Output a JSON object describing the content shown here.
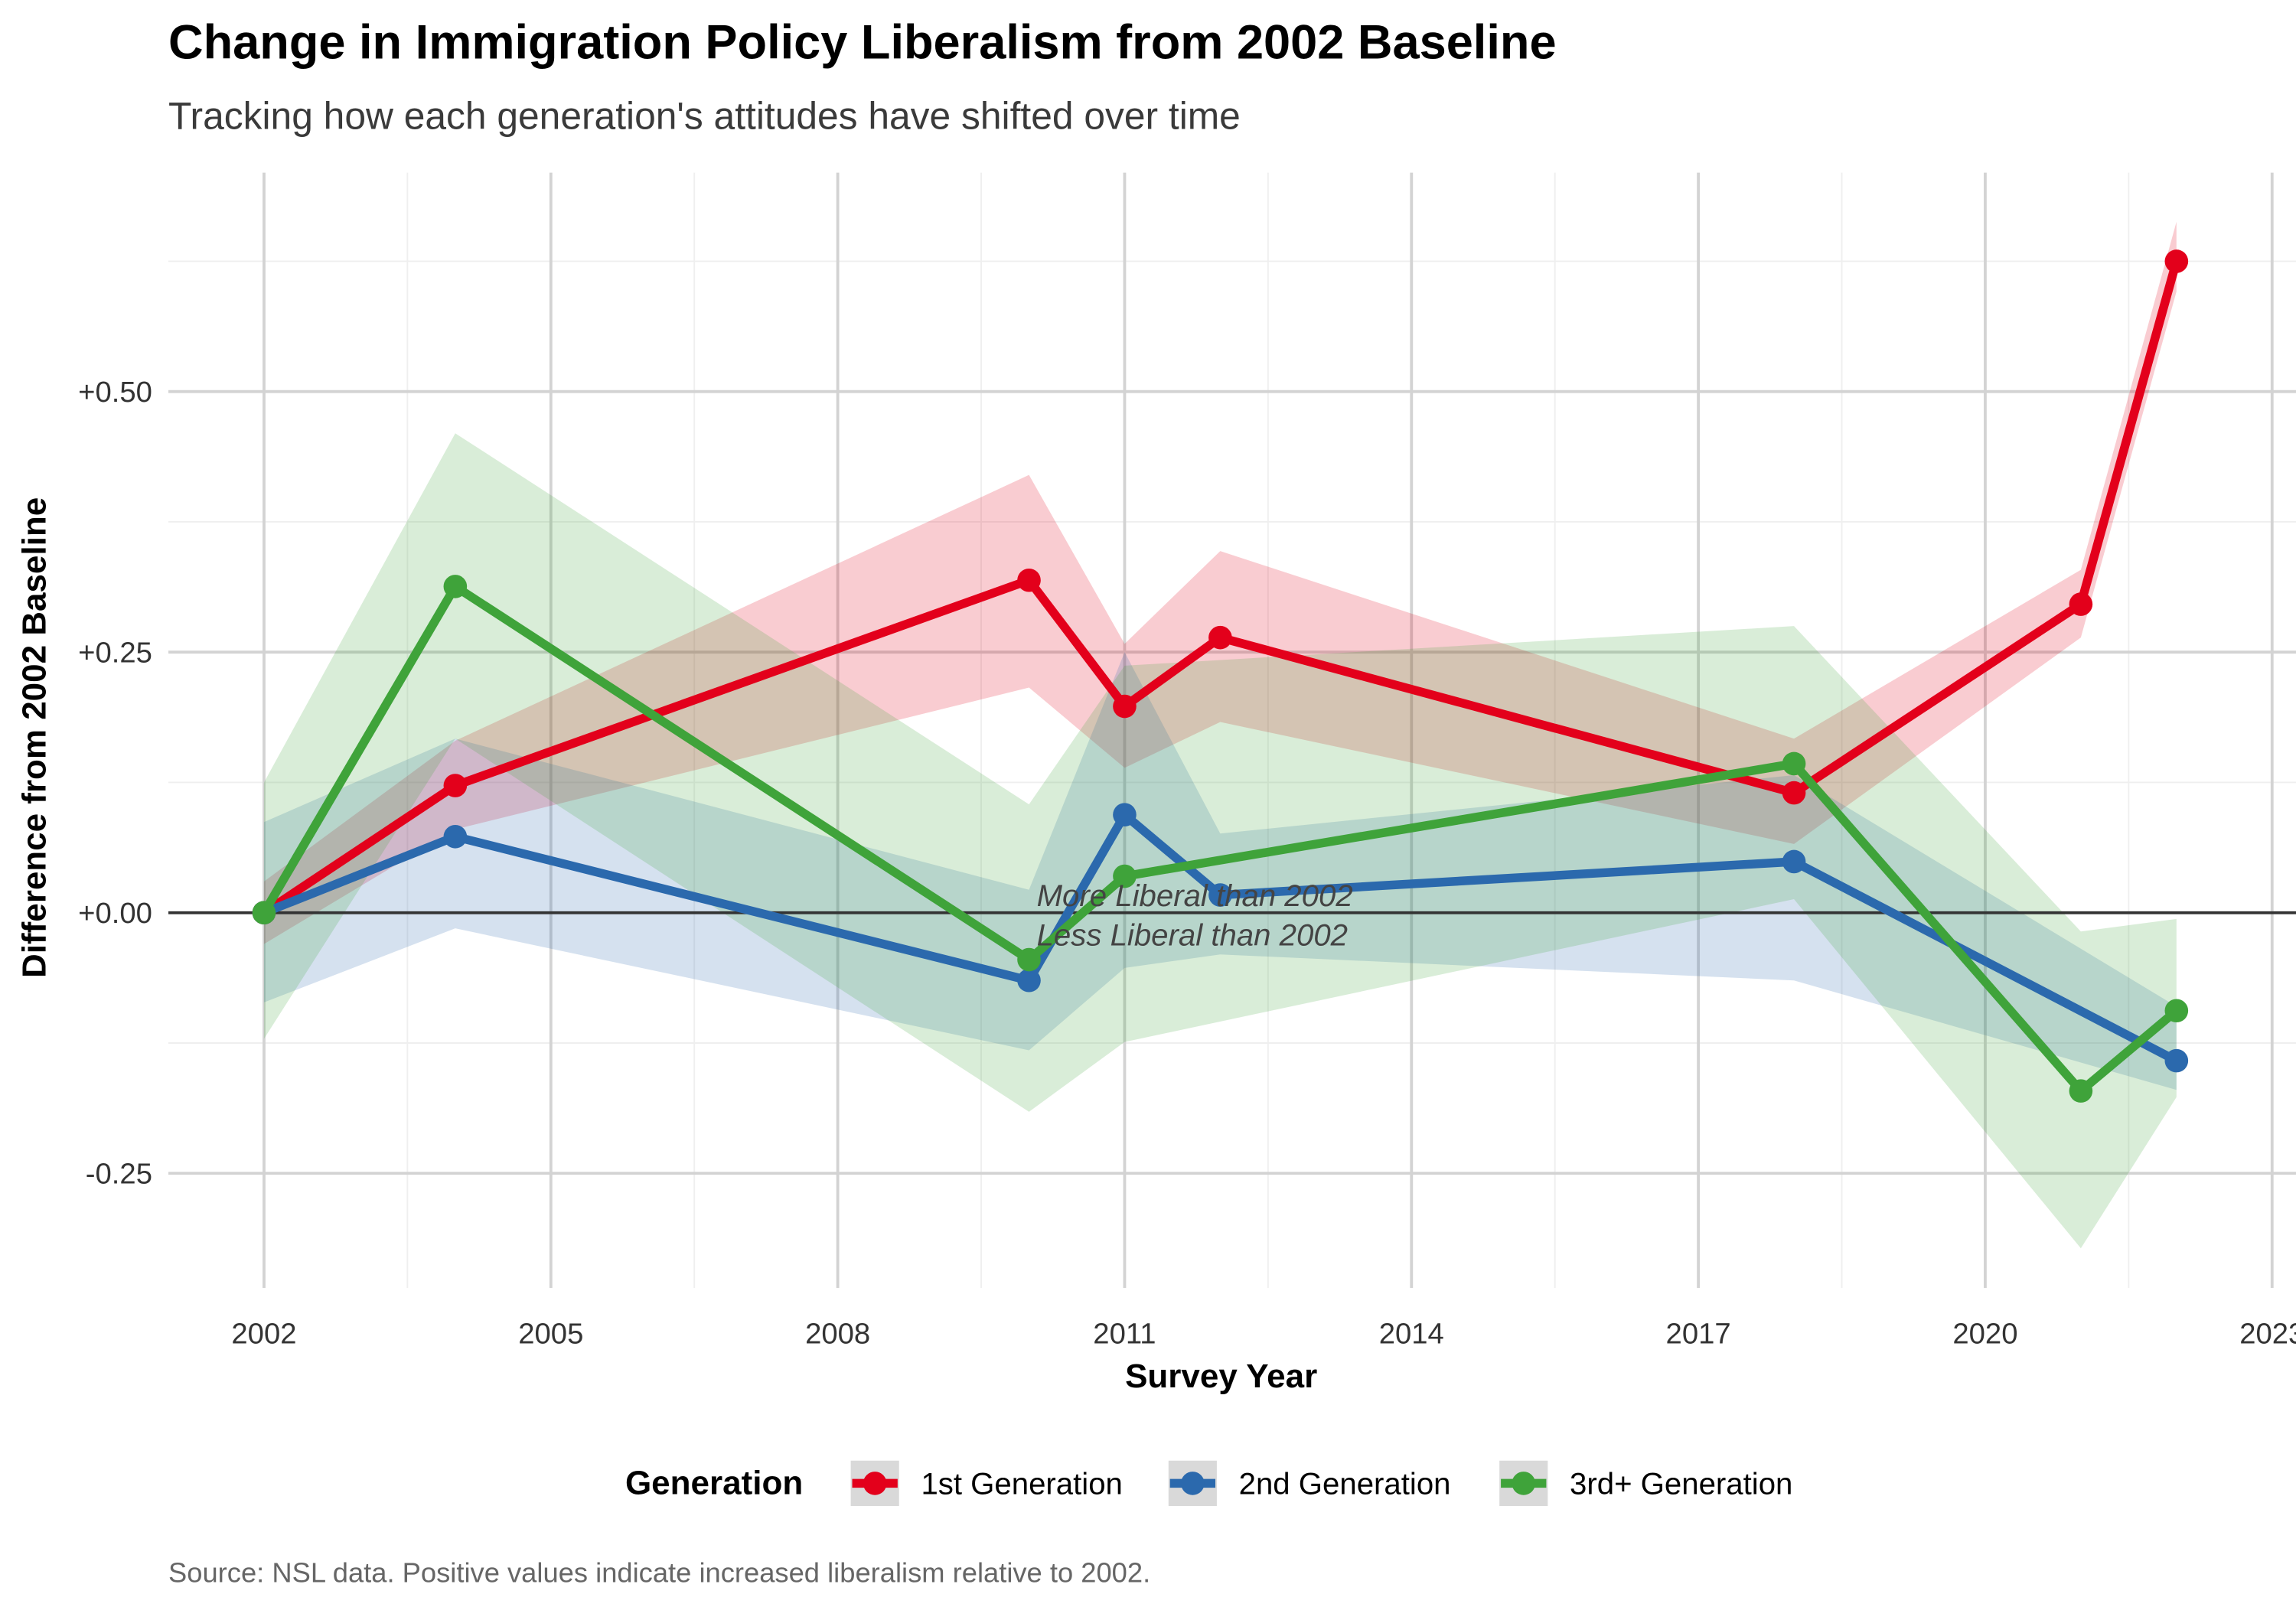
{
  "chart_data": {
    "type": "line",
    "title": "Change in Immigration Policy Liberalism from 2002 Baseline",
    "subtitle": "Tracking how each generation's attitudes have shifted over time",
    "x_label": "Survey Year",
    "y_label": "Difference from 2002 Baseline",
    "caption": "Source: NSL data. Positive values indicate increased liberalism relative to 2002.",
    "legend_title": "Generation",
    "legend_position": "bottom",
    "grid": true,
    "hline": 0,
    "annotations": [
      "More Liberal than 2002",
      "Less Liberal than 2002"
    ],
    "xlim": [
      2001,
      2023.25
    ],
    "xticks": [
      2002,
      2005,
      2008,
      2011,
      2014,
      2017,
      2020,
      2023
    ],
    "ylim": [
      -0.36,
      0.71
    ],
    "yticks": [
      {
        "value": -0.25,
        "label": "-0.25"
      },
      {
        "value": 0,
        "label": "+0.00"
      },
      {
        "value": 0.25,
        "label": "+0.25"
      },
      {
        "value": 0.5,
        "label": "+0.50"
      }
    ],
    "series": [
      {
        "name": "1st Generation",
        "color": "#e3001b",
        "x": [
          2002,
          2004,
          2010,
          2011,
          2012,
          2018,
          2021,
          2022
        ],
        "values": [
          0,
          0.122,
          0.319,
          0.198,
          0.264,
          0.115,
          0.296,
          0.625
        ],
        "lower": [
          -0.03,
          0.08,
          0.216,
          0.139,
          0.183,
          0.066,
          0.264,
          0.596
        ],
        "upper": [
          0.03,
          0.165,
          0.42,
          0.258,
          0.347,
          0.167,
          0.329,
          0.663
        ]
      },
      {
        "name": "2nd Generation",
        "color": "#2b69ad",
        "x": [
          2002,
          2004,
          2010,
          2011,
          2012,
          2018,
          2022
        ],
        "values": [
          0,
          0.073,
          -0.065,
          0.094,
          0.017,
          0.049,
          -0.142
        ],
        "lower": [
          -0.086,
          -0.015,
          -0.132,
          -0.053,
          -0.04,
          -0.065,
          -0.17
        ],
        "upper": [
          0.087,
          0.167,
          0.022,
          0.25,
          0.076,
          0.132,
          -0.09
        ]
      },
      {
        "name": "3rd+ Generation",
        "color": "#3fa33a",
        "x": [
          2002,
          2004,
          2010,
          2011,
          2018,
          2021,
          2022
        ],
        "values": [
          0,
          0.313,
          -0.045,
          0.035,
          0.143,
          -0.171,
          -0.094
        ],
        "lower": [
          -0.121,
          0.167,
          -0.191,
          -0.124,
          0.013,
          -0.322,
          -0.177
        ],
        "upper": [
          0.125,
          0.46,
          0.104,
          0.237,
          0.275,
          -0.018,
          -0.006
        ]
      }
    ]
  }
}
